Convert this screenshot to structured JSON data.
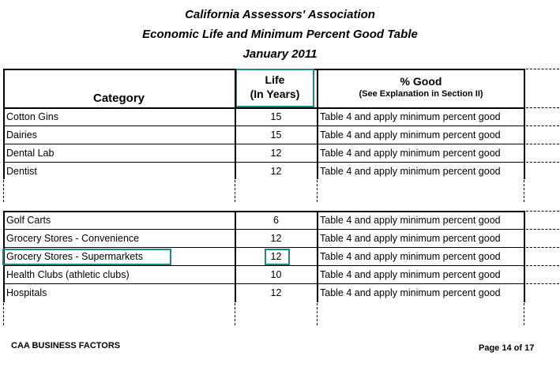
{
  "header": {
    "line1": "California Assessors' Association",
    "line2": "Economic Life and Minimum Percent Good Table",
    "line3": "January 2011"
  },
  "columns": {
    "category": "Category",
    "life_line1": "Life",
    "life_line2": "(In Years)",
    "good_line1": "% Good",
    "good_line2": "(See Explanation in Section II)"
  },
  "group1": [
    {
      "category": "Cotton Gins",
      "life": "15",
      "good": "Table 4 and apply minimum percent good"
    },
    {
      "category": "Dairies",
      "life": "15",
      "good": "Table 4 and apply minimum percent good"
    },
    {
      "category": "Dental Lab",
      "life": "12",
      "good": "Table 4 and apply minimum percent good"
    },
    {
      "category": "Dentist",
      "life": "12",
      "good": "Table 4 and apply minimum percent good"
    }
  ],
  "group2": [
    {
      "category": "Golf Carts",
      "life": "6",
      "good": "Table 4 and apply minimum percent good"
    },
    {
      "category": "Grocery Stores - Convenience",
      "life": "12",
      "good": "Table 4 and apply minimum percent good"
    },
    {
      "category": "Grocery Stores - Supermarkets",
      "life": "12",
      "good": "Table 4 and apply minimum percent good"
    },
    {
      "category": "Health Clubs (athletic clubs)",
      "life": "10",
      "good": "Table 4 and apply minimum percent good"
    },
    {
      "category": "Hospitals",
      "life": "12",
      "good": "Table 4 and apply minimum percent good"
    }
  ],
  "footer": {
    "left": "CAA BUSINESS FACTORS",
    "right": "Page 14 of 17"
  },
  "highlight_color": "#1a8a86"
}
